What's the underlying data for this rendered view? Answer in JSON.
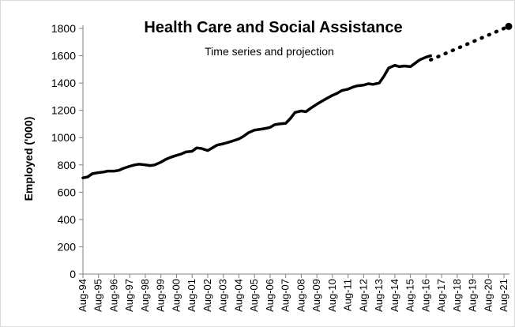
{
  "chart_data": {
    "type": "line",
    "title": "Health Care and Social Assistance",
    "subtitle": "Time series and projection",
    "xlabel": "",
    "ylabel": "Employed ('000)",
    "ylim": [
      0,
      1800
    ],
    "yticks": [
      0,
      200,
      400,
      600,
      800,
      1000,
      1200,
      1400,
      1600,
      1800
    ],
    "grid": false,
    "legend": "none",
    "x_tick_labels": [
      "Aug-94",
      "Aug-95",
      "Aug-96",
      "Aug-97",
      "Aug-98",
      "Aug-99",
      "Aug-00",
      "Aug-01",
      "Aug-02",
      "Aug-03",
      "Aug-04",
      "Aug-05",
      "Aug-06",
      "Aug-07",
      "Aug-08",
      "Aug-09",
      "Aug-10",
      "Aug-11",
      "Aug-12",
      "Aug-13",
      "Aug-14",
      "Aug-15",
      "Aug-16",
      "Aug-17",
      "Aug-18",
      "Aug-19",
      "Aug-20",
      "Aug-21"
    ],
    "series": [
      {
        "style": "solid",
        "color": "#000000",
        "x": [
          1994.6,
          1994.9,
          1995.2,
          1995.5,
          1995.9,
          1996.2,
          1996.6,
          1996.9,
          1997.2,
          1997.6,
          1997.9,
          1998.2,
          1998.6,
          1998.9,
          1999.2,
          1999.6,
          1999.9,
          2000.2,
          2000.6,
          2000.9,
          2001.2,
          2001.6,
          2001.9,
          2002.2,
          2002.6,
          2002.9,
          2003.2,
          2003.6,
          2003.9,
          2004.2,
          2004.6,
          2004.9,
          2005.2,
          2005.6,
          2005.9,
          2006.2,
          2006.6,
          2006.9,
          2007.2,
          2007.6,
          2007.9,
          2008.2,
          2008.6,
          2008.9,
          2009.2,
          2009.6,
          2009.9,
          2010.2,
          2010.6,
          2010.9,
          2011.2,
          2011.6,
          2011.9,
          2012.2,
          2012.6,
          2012.9,
          2013.2,
          2013.6,
          2013.9,
          2014.2,
          2014.6,
          2014.9,
          2015.2,
          2015.6,
          2015.9,
          2016.2,
          2016.6,
          2016.9
        ],
        "values": [
          705,
          712,
          735,
          742,
          748,
          755,
          755,
          760,
          775,
          790,
          800,
          805,
          800,
          795,
          800,
          820,
          840,
          855,
          870,
          880,
          895,
          900,
          925,
          920,
          905,
          925,
          945,
          955,
          965,
          975,
          990,
          1010,
          1035,
          1055,
          1060,
          1065,
          1075,
          1095,
          1100,
          1105,
          1140,
          1185,
          1195,
          1190,
          1215,
          1245,
          1265,
          1285,
          1310,
          1325,
          1345,
          1355,
          1370,
          1380,
          1385,
          1395,
          1390,
          1400,
          1450,
          1510,
          1530,
          1520,
          1525,
          1520,
          1545,
          1570,
          1590,
          1600
        ]
      },
      {
        "style": "dotted",
        "color": "#000000",
        "x": [
          2016.9,
          2021.9
        ],
        "values": [
          1570,
          1815
        ]
      }
    ]
  }
}
